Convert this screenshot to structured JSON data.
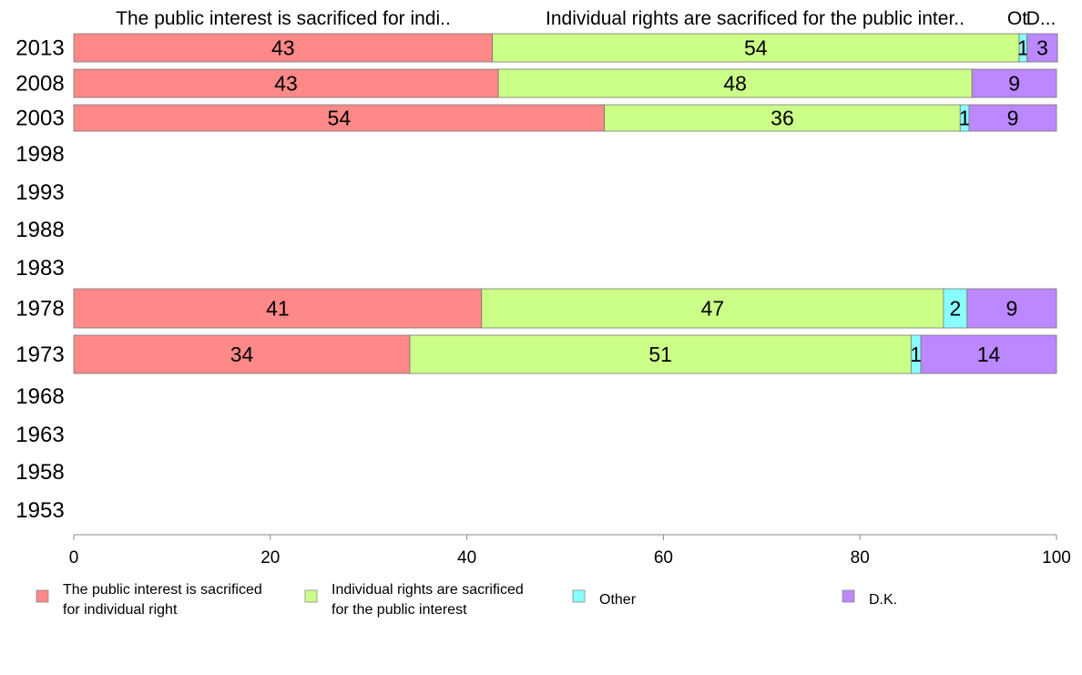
{
  "chart_data": {
    "type": "bar",
    "orientation": "horizontal",
    "stacked": true,
    "categories": [
      "2013",
      "2008",
      "2003",
      "1998",
      "1993",
      "1988",
      "1983",
      "1978",
      "1973",
      "1968",
      "1963",
      "1958",
      "1953"
    ],
    "column_headers": [
      "The public interest is sacrificed for indi..",
      "Individual rights are sacrificed for the public inter..",
      "Ot",
      "D..."
    ],
    "series": [
      {
        "name": "The public interest is sacrificed for individual right",
        "color": "#ff8888",
        "values": [
          42.6,
          43.2,
          54.0,
          null,
          null,
          null,
          null,
          41.5,
          34.2,
          null,
          null,
          null,
          null
        ],
        "labels": [
          "43",
          "43",
          "54",
          "",
          "",
          "",
          "",
          "41",
          "34",
          "",
          "",
          "",
          ""
        ]
      },
      {
        "name": "Individual rights are sacrificed for the public interest",
        "color": "#ccff88",
        "values": [
          53.6,
          48.2,
          36.2,
          null,
          null,
          null,
          null,
          47.0,
          51.0,
          null,
          null,
          null,
          null
        ],
        "labels": [
          "54",
          "48",
          "36",
          "",
          "",
          "",
          "",
          "47",
          "51",
          "",
          "",
          "",
          ""
        ]
      },
      {
        "name": "Other",
        "color": "#88ffff",
        "values": [
          0.8,
          0.0,
          0.9,
          null,
          null,
          null,
          null,
          2.4,
          1.0,
          null,
          null,
          null,
          null
        ],
        "labels": [
          "1",
          "",
          "1",
          "",
          "",
          "",
          "",
          "2",
          "1",
          "",
          "",
          "",
          ""
        ]
      },
      {
        "name": "D.K.",
        "color": "#bb88ff",
        "values": [
          3.1,
          8.6,
          8.9,
          null,
          null,
          null,
          null,
          9.1,
          13.8,
          null,
          null,
          null,
          null
        ],
        "labels": [
          "3",
          "9",
          "9",
          "",
          "",
          "",
          "",
          "9",
          "14",
          "",
          "",
          "",
          ""
        ]
      }
    ],
    "xlim": [
      0,
      100
    ],
    "xticks": [
      "0",
      "20",
      "40",
      "60",
      "80",
      "100"
    ],
    "legend": {
      "position": "bottom",
      "items": [
        {
          "lines": [
            "The public interest is sacrificed",
            "for individual right"
          ],
          "color": "#ff8888"
        },
        {
          "lines": [
            "Individual rights are sacrificed",
            "for the public interest"
          ],
          "color": "#ccff88"
        },
        {
          "lines": [
            "Other"
          ],
          "color": "#88ffff"
        },
        {
          "lines": [
            "D.K."
          ],
          "color": "#bb88ff"
        }
      ]
    }
  }
}
